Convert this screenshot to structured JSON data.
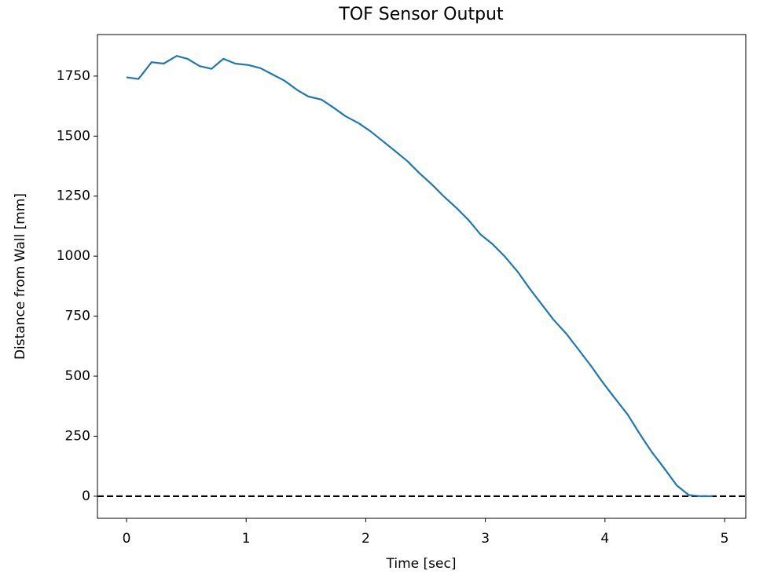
{
  "chart_data": {
    "type": "line",
    "title": "TOF Sensor Output",
    "x_label": "Time [sec]",
    "y_label": "Distance from Wall [mm]",
    "x": [
      0.0,
      0.1,
      0.21,
      0.31,
      0.42,
      0.51,
      0.61,
      0.71,
      0.81,
      0.91,
      1.02,
      1.12,
      1.22,
      1.32,
      1.43,
      1.52,
      1.63,
      1.73,
      1.83,
      1.94,
      2.04,
      2.14,
      2.24,
      2.35,
      2.45,
      2.55,
      2.65,
      2.76,
      2.86,
      2.96,
      3.06,
      3.16,
      3.27,
      3.37,
      3.47,
      3.57,
      3.68,
      3.78,
      3.88,
      3.98,
      4.08,
      4.19,
      4.29,
      4.39,
      4.49,
      4.6,
      4.7,
      4.8,
      4.9
    ],
    "series": [
      {
        "color": "#1f77b4",
        "values": [
          1745,
          1738,
          1808,
          1802,
          1834,
          1822,
          1792,
          1780,
          1822,
          1802,
          1796,
          1783,
          1757,
          1731,
          1691,
          1665,
          1652,
          1619,
          1583,
          1554,
          1520,
          1480,
          1440,
          1395,
          1345,
          1300,
          1250,
          1200,
          1150,
          1090,
          1050,
          1000,
          935,
          865,
          800,
          735,
          675,
          610,
          545,
          475,
          410,
          340,
          260,
          185,
          120,
          45,
          5,
          0,
          0
        ]
      }
    ],
    "hline": {
      "value": 0,
      "color": "#000000"
    },
    "xlim": [
      -0.243,
      5.177
    ],
    "ylim": [
      -92,
      1923
    ],
    "xticks": [
      0,
      1,
      2,
      3,
      4,
      5
    ],
    "yticks": [
      0,
      250,
      500,
      750,
      1000,
      1250,
      1500,
      1750
    ]
  }
}
